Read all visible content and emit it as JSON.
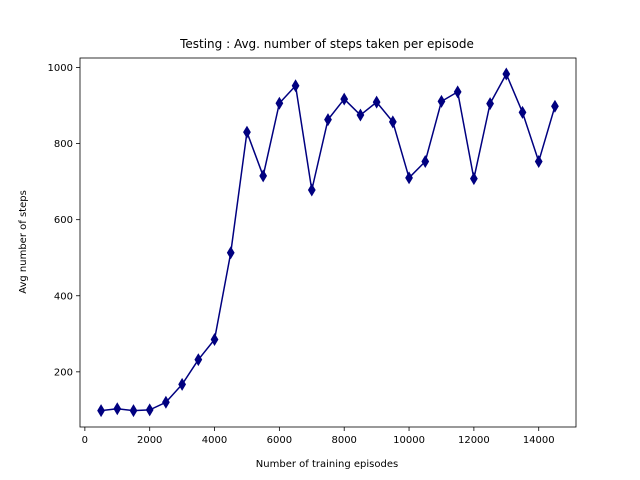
{
  "chart_data": {
    "type": "line",
    "title": "Testing : Avg. number of steps taken per episode",
    "xlabel": "Number of training episodes",
    "ylabel": "Avg number of steps",
    "xlim": [
      -150,
      15150
    ],
    "ylim": [
      55,
      1025
    ],
    "xticks": [
      0,
      2000,
      4000,
      6000,
      8000,
      10000,
      12000,
      14000
    ],
    "yticks": [
      200,
      400,
      600,
      800,
      1000
    ],
    "xtick_labels": [
      "0",
      "2000",
      "4000",
      "6000",
      "8000",
      "10000",
      "12000",
      "14000"
    ],
    "ytick_labels": [
      "200",
      "400",
      "600",
      "800",
      "1000"
    ],
    "grid": false,
    "series": [
      {
        "color": "#000080",
        "marker": "thin-diamond",
        "x": [
          500,
          1000,
          1500,
          2000,
          2500,
          3000,
          3500,
          4000,
          4500,
          5000,
          5500,
          6000,
          6500,
          7000,
          7500,
          8000,
          8500,
          9000,
          9500,
          10000,
          10500,
          11000,
          11500,
          12000,
          12500,
          13000,
          13500,
          14000,
          14500
        ],
        "y": [
          98,
          103,
          98,
          100,
          120,
          167,
          232,
          285,
          513,
          830,
          715,
          906,
          952,
          678,
          863,
          917,
          875,
          909,
          857,
          710,
          753,
          911,
          936,
          708,
          905,
          983,
          882,
          753,
          898
        ]
      }
    ]
  }
}
